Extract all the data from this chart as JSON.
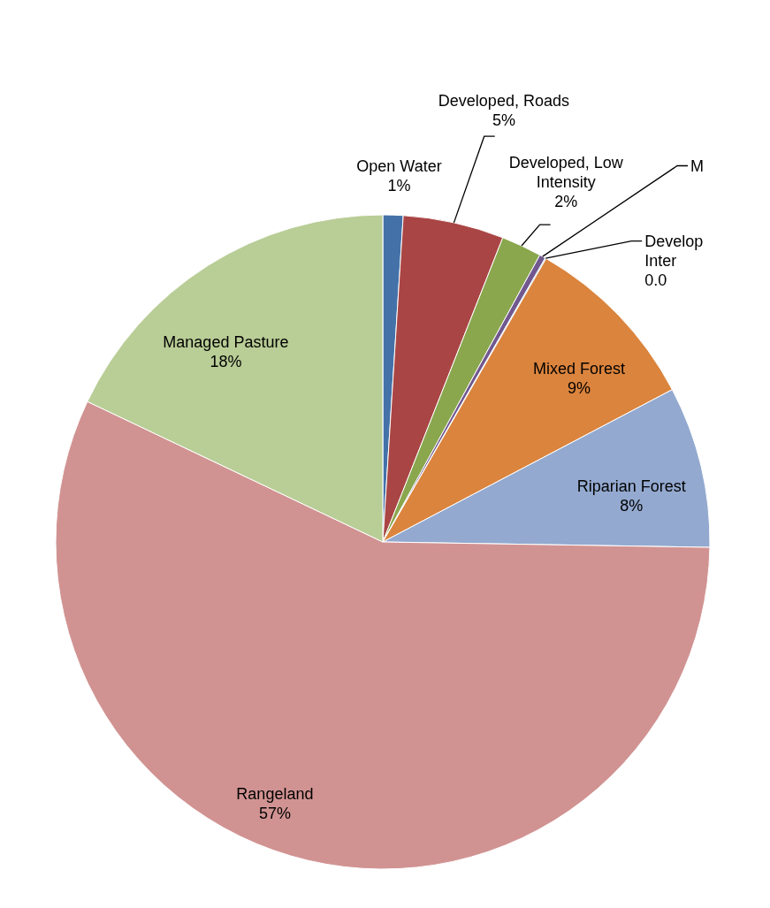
{
  "chart_data": {
    "type": "pie",
    "categories": [
      "Open Water",
      "Developed, Roads",
      "Developed, Low Intensity",
      "M",
      "Develop Inter",
      "Mixed Forest",
      "Riparian Forest",
      "Rangeland",
      "Managed Pasture"
    ],
    "values": [
      1,
      5,
      2,
      0.3,
      0.05,
      9,
      8,
      57,
      18
    ],
    "value_labels": [
      "1%",
      "5%",
      "2%",
      null,
      "0.0",
      "9%",
      "8%",
      "57%",
      "18%"
    ],
    "colors": [
      "#4472a8",
      "#a94645",
      "#8aa74e",
      "#71588f",
      "#4198af",
      "#db843d",
      "#93a9cf",
      "#d19392",
      "#b9cd96"
    ]
  }
}
